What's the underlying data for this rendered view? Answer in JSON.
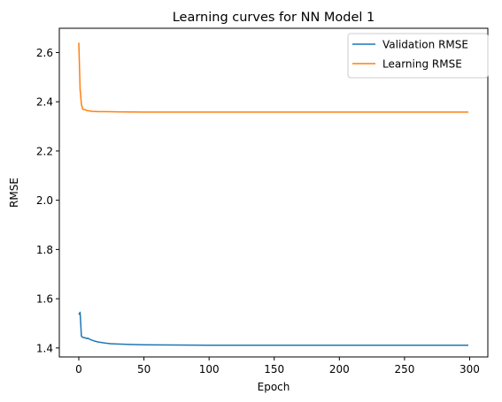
{
  "chart_data": {
    "type": "line",
    "title": "Learning curves for NN Model 1",
    "xlabel": "Epoch",
    "ylabel": "RMSE",
    "xlim": [
      -14.95,
      313.95
    ],
    "ylim": [
      1.3635,
      2.6985
    ],
    "xticks": [
      0,
      50,
      100,
      150,
      200,
      250,
      300
    ],
    "yticks": [
      1.4,
      1.6,
      1.8,
      2.0,
      2.2,
      2.4,
      2.6
    ],
    "ytick_labels": [
      "1.4",
      "1.6",
      "1.8",
      "2.0",
      "2.2",
      "2.4",
      "2.6"
    ],
    "grid": false,
    "legend_position": "top-right",
    "series": [
      {
        "name": "Validation RMSE",
        "color": "#1f77b4",
        "x": [
          0,
          1,
          2,
          3,
          4,
          5,
          6,
          7,
          8,
          10,
          12,
          15,
          20,
          25,
          30,
          40,
          50,
          75,
          100,
          150,
          200,
          250,
          299
        ],
        "y": [
          1.535,
          1.545,
          1.448,
          1.443,
          1.442,
          1.441,
          1.438,
          1.44,
          1.436,
          1.432,
          1.428,
          1.424,
          1.42,
          1.417,
          1.416,
          1.414,
          1.413,
          1.412,
          1.411,
          1.411,
          1.411,
          1.411,
          1.411
        ]
      },
      {
        "name": "Learning RMSE",
        "color": "#ff7f0e",
        "x": [
          0,
          1,
          2,
          3,
          4,
          5,
          6,
          8,
          10,
          15,
          20,
          30,
          50,
          100,
          150,
          200,
          250,
          299
        ],
        "y": [
          2.64,
          2.45,
          2.39,
          2.37,
          2.368,
          2.368,
          2.365,
          2.363,
          2.361,
          2.36,
          2.36,
          2.359,
          2.358,
          2.358,
          2.358,
          2.358,
          2.358,
          2.358
        ]
      }
    ]
  }
}
